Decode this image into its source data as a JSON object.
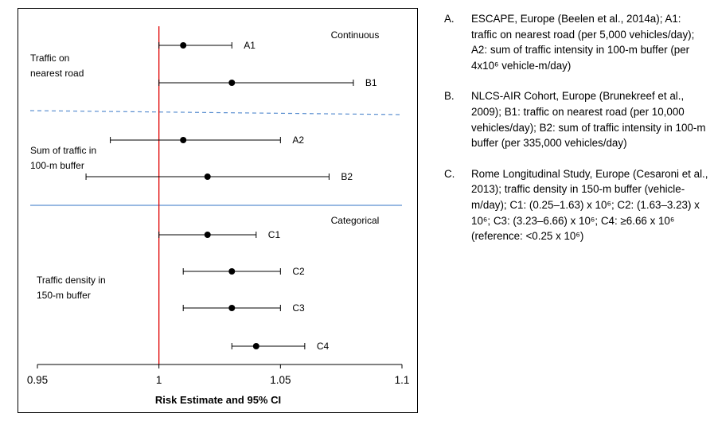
{
  "chart_data": {
    "type": "forest",
    "xlabel": "Risk Estimate and 95% CI",
    "xlim": [
      0.95,
      1.1
    ],
    "x_ticks": [
      "0.95",
      "1",
      "1.05",
      "1.1"
    ],
    "reference_line": 1,
    "section_labels": [
      "Continuous",
      "Categorical"
    ],
    "groups": [
      {
        "label_lines": [
          "Traffic on",
          "nearest road"
        ]
      },
      {
        "label_lines": [
          "Sum of traffic in",
          "100-m buffer"
        ]
      },
      {
        "label_lines": [
          "Traffic density in",
          "150-m buffer"
        ]
      }
    ],
    "estimates": [
      {
        "label": "A1",
        "estimate": 1.01,
        "lower": 1.0,
        "upper": 1.03
      },
      {
        "label": "B1",
        "estimate": 1.03,
        "lower": 1.0,
        "upper": 1.08
      },
      {
        "label": "A2",
        "estimate": 1.01,
        "lower": 0.98,
        "upper": 1.05
      },
      {
        "label": "B2",
        "estimate": 1.02,
        "lower": 0.97,
        "upper": 1.07
      },
      {
        "label": "C1",
        "estimate": 1.02,
        "lower": 1.0,
        "upper": 1.04
      },
      {
        "label": "C2",
        "estimate": 1.03,
        "lower": 1.01,
        "upper": 1.05
      },
      {
        "label": "C3",
        "estimate": 1.03,
        "lower": 1.01,
        "upper": 1.05
      },
      {
        "label": "C4",
        "estimate": 1.04,
        "lower": 1.03,
        "upper": 1.06
      }
    ]
  },
  "legend": [
    {
      "letter": "A.",
      "text": "ESCAPE, Europe (Beelen et al., 2014a); A1: traffic on nearest road (per 5,000 vehicles/day); A2: sum of traffic intensity in 100-m buffer (per 4x10⁶ vehicle-m/day)"
    },
    {
      "letter": "B.",
      "text": "NLCS-AIR Cohort, Europe (Brunekreef et al., 2009); B1: traffic on nearest road (per 10,000 vehicles/day); B2: sum of traffic intensity in 100-m buffer (per 335,000 vehicles/day)"
    },
    {
      "letter": "C.",
      "text": "Rome Longitudinal Study, Europe (Cesaroni et al., 2013); traffic density in 150-m buffer (vehicle-m/day); C1: (0.25–1.63) x 10⁶; C2: (1.63–3.23) x 10⁶; C3: (3.23–6.66) x 10⁶; C4: ≥6.66 x 10⁶ (reference: <0.25 x 10⁶)"
    }
  ],
  "colors": {
    "reference_line": "#e00000",
    "separator": "#5b8fd0",
    "marker": "#000000"
  }
}
